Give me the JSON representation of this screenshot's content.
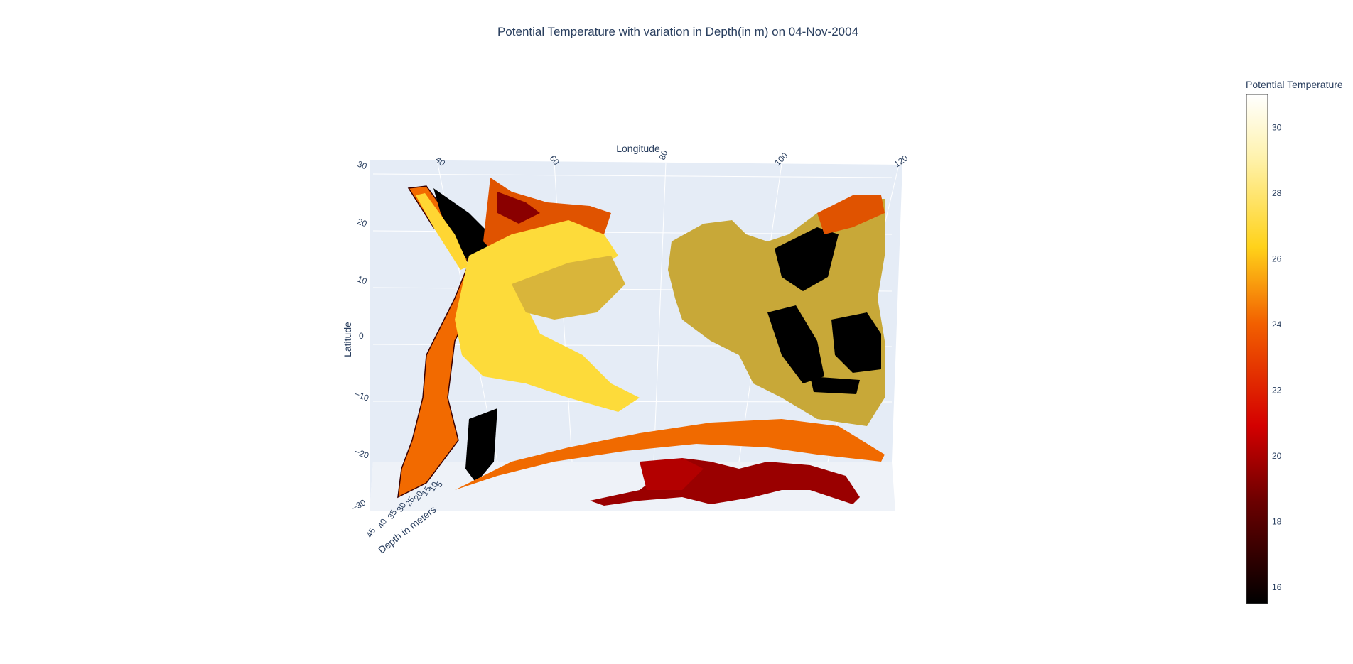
{
  "chart_data": {
    "type": "surface",
    "title": "Potential Temperature with variation in Depth(in m) on 04-Nov-2004",
    "x_axis": {
      "label": "Longitude",
      "ticks": [
        "40",
        "60",
        "80",
        "100",
        "120"
      ]
    },
    "y_axis": {
      "label": "Latitude",
      "ticks": [
        "30",
        "20",
        "10",
        "0",
        "−10",
        "−20",
        "−30"
      ]
    },
    "z_axis": {
      "label": "Depth in meters",
      "ticks": [
        "45",
        "40",
        "35",
        "30",
        "25",
        "20",
        "15",
        "10",
        "5"
      ]
    },
    "colorbar": {
      "title": "Potential Temperature",
      "colorscale": "hot",
      "range": [
        15.5,
        31
      ],
      "ticks": [
        "30",
        "28",
        "26",
        "24",
        "22",
        "20",
        "18",
        "16"
      ],
      "colors": [
        "#000000",
        "#6b0000",
        "#d40000",
        "#f26000",
        "#ffd21a",
        "#fff3b0",
        "#ffffff"
      ]
    }
  }
}
